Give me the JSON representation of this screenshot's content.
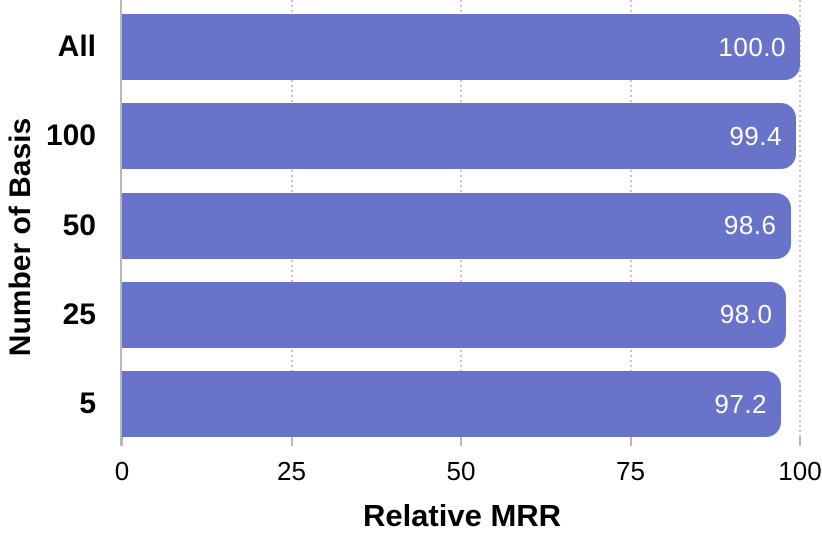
{
  "chart_data": {
    "type": "bar",
    "orientation": "horizontal",
    "categories": [
      "All",
      "100",
      "50",
      "25",
      "5"
    ],
    "values": [
      100.0,
      99.4,
      98.6,
      98.0,
      97.2
    ],
    "value_labels": [
      "100.0",
      "99.4",
      "98.6",
      "98.0",
      "97.2"
    ],
    "xlabel": "Relative MRR",
    "ylabel": "Number of Basis",
    "x_ticks": [
      "0",
      "25",
      "50",
      "75",
      "100"
    ],
    "x_tick_values": [
      0,
      25,
      50,
      75,
      100
    ],
    "xlim": [
      0,
      100
    ],
    "grid": "vertical dotted lines at x ticks",
    "legend": "none",
    "colors": {
      "bar": "#6873C9",
      "bar_value_text": "#FFFFFF",
      "grid_line": "#C6C6C6",
      "axis_spine": "#B8B8B8",
      "text": "#000000",
      "background": "#FFFFFF"
    }
  }
}
